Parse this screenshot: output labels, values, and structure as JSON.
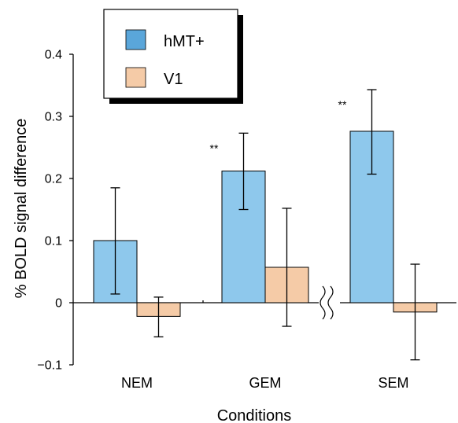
{
  "chart_data": {
    "type": "bar",
    "title": "",
    "xlabel": "Conditions",
    "ylabel": "% BOLD signal difference",
    "ylim": [
      -0.1,
      0.4
    ],
    "yticks": [
      "0.4",
      "0.3",
      "0.2",
      "0.1",
      "0",
      "−0.1"
    ],
    "ytick_values": [
      0.4,
      0.3,
      0.2,
      0.1,
      0,
      -0.1
    ],
    "categories": [
      "NEM",
      "GEM",
      "SEM"
    ],
    "series": [
      {
        "name": "hMT+",
        "color": "#8ec8ec",
        "values": [
          0.1,
          0.212,
          0.276
        ],
        "error_low": [
          0.014,
          0.15,
          0.207
        ],
        "error_high": [
          0.185,
          0.273,
          0.343
        ]
      },
      {
        "name": "V1",
        "color": "#f5cba7",
        "values": [
          -0.022,
          0.057,
          -0.015
        ],
        "error_low": [
          -0.055,
          -0.038,
          -0.092
        ],
        "error_high": [
          0.009,
          0.152,
          0.062
        ]
      }
    ],
    "significance": [
      {
        "category": "GEM",
        "series": "hMT+",
        "text": "**"
      },
      {
        "category": "SEM",
        "series": "hMT+",
        "text": "**"
      }
    ],
    "axis_break": "between GEM and SEM",
    "legend": {
      "position": "top-left",
      "entries": [
        "hMT+",
        "V1"
      ]
    },
    "grid": false
  }
}
